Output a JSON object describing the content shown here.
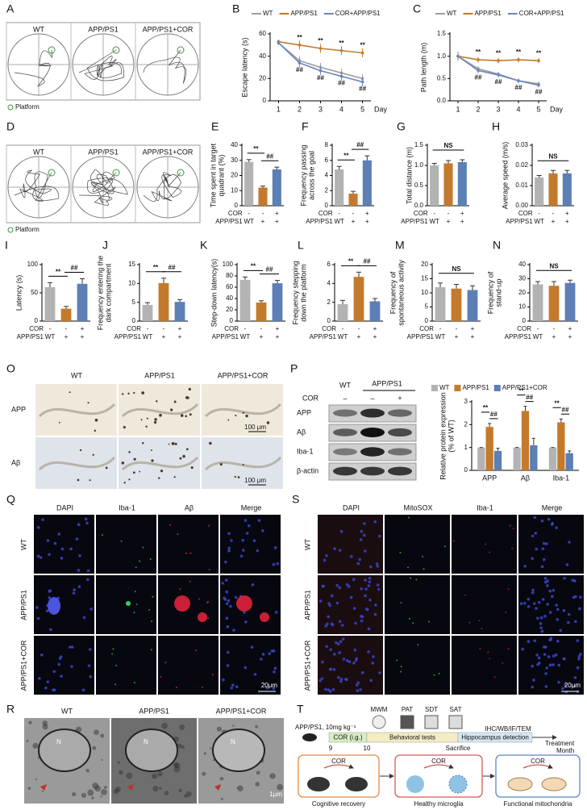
{
  "chart_data": [
    {
      "type": "line",
      "panel": "B",
      "ylabel": [
        "Escape latency (s)"
      ],
      "xlabel": "Day",
      "x": [
        1,
        2,
        3,
        4,
        5
      ],
      "xlim": [
        0.6,
        5.4
      ],
      "xticks": [
        1,
        2,
        3,
        4,
        5
      ],
      "ylim": [
        0,
        60
      ],
      "yticks": [
        0,
        20,
        40,
        60
      ],
      "series": [
        {
          "name": "WT",
          "color": "#9e9e9e",
          "values": [
            52,
            36,
            30,
            25,
            20
          ],
          "errors": [
            2,
            4,
            4,
            4,
            4
          ]
        },
        {
          "name": "APP/PS1",
          "color": "#c47a2c",
          "values": [
            53,
            50,
            47,
            45,
            43
          ],
          "errors": [
            2,
            4,
            4,
            4,
            4
          ]
        },
        {
          "name": "COR+APP/PS1",
          "color": "#6b86bf",
          "values": [
            52,
            34,
            27,
            22,
            17
          ],
          "errors": [
            2,
            4,
            4,
            4,
            4
          ]
        }
      ],
      "annotations": [
        {
          "x": 2,
          "text": "**"
        },
        {
          "x": 3,
          "text": "**"
        },
        {
          "x": 4,
          "text": "**"
        },
        {
          "x": 5,
          "text": "**"
        },
        {
          "x": 2,
          "text": "##"
        },
        {
          "x": 3,
          "text": "##"
        },
        {
          "x": 4,
          "text": "##"
        },
        {
          "x": 5,
          "text": "##"
        }
      ]
    },
    {
      "type": "line",
      "panel": "C",
      "ylabel": [
        "Path length (m)"
      ],
      "xlabel": "Day",
      "x": [
        1,
        2,
        3,
        4,
        5
      ],
      "xlim": [
        0.6,
        5.4
      ],
      "xticks": [
        1,
        2,
        3,
        4,
        5
      ],
      "ylim": [
        0,
        1.5
      ],
      "yticks": [
        {
          "value": 0,
          "label": "0.0"
        },
        0.5,
        {
          "value": 1,
          "label": "1.0"
        },
        1.5
      ],
      "series": [
        {
          "name": "WT",
          "color": "#9e9e9e",
          "values": [
            1.0,
            0.72,
            0.6,
            0.45,
            0.38
          ],
          "errors": [
            0.1,
            0.06,
            0.05,
            0.05,
            0.05
          ]
        },
        {
          "name": "APP/PS1",
          "color": "#c47a2c",
          "values": [
            1.0,
            0.92,
            0.9,
            0.92,
            0.9
          ],
          "errors": [
            0.1,
            0.06,
            0.06,
            0.06,
            0.06
          ]
        },
        {
          "name": "COR+APP/PS1",
          "color": "#6b86bf",
          "values": [
            1.0,
            0.68,
            0.58,
            0.45,
            0.35
          ],
          "errors": [
            0.1,
            0.06,
            0.05,
            0.05,
            0.05
          ]
        }
      ],
      "annotations": [
        {
          "x": 2,
          "text": "**"
        },
        {
          "x": 3,
          "text": "**"
        },
        {
          "x": 4,
          "text": "**"
        },
        {
          "x": 5,
          "text": "**"
        },
        {
          "x": 2,
          "text": "##"
        },
        {
          "x": 3,
          "text": "##"
        },
        {
          "x": 4,
          "text": "##"
        },
        {
          "x": 5,
          "text": "##"
        }
      ]
    },
    {
      "type": "bar",
      "panel": "E",
      "ylabel": [
        "Time spent in target",
        "quadrant (%)"
      ],
      "ylim": [
        0,
        40
      ],
      "yticks": [
        0,
        10,
        20,
        30,
        40
      ],
      "values": [
        29,
        12,
        24
      ],
      "errors": [
        1.5,
        1,
        1.5
      ],
      "colors": [
        "#b3b3b3",
        "#c47a2c",
        "#5c7fb5"
      ],
      "rows": [
        {
          "label": "COR",
          "values": [
            "-",
            "-",
            "+"
          ]
        },
        {
          "label": "APP/PS1",
          "values": [
            "WT",
            "+",
            "+"
          ]
        }
      ],
      "brackets": [
        {
          "from": 0,
          "to": 1,
          "text": "**"
        },
        {
          "from": 1,
          "to": 2,
          "text": "##"
        }
      ]
    },
    {
      "type": "bar",
      "panel": "F",
      "ylabel": [
        "Frequency passing",
        "across the goal"
      ],
      "ylim": [
        0,
        8
      ],
      "yticks": [
        0,
        2,
        4,
        6,
        8
      ],
      "values": [
        4.8,
        1.6,
        6.0
      ],
      "errors": [
        0.4,
        0.3,
        0.6
      ],
      "colors": [
        "#b3b3b3",
        "#c47a2c",
        "#5c7fb5"
      ],
      "rows": [
        {
          "label": "COR",
          "values": [
            "-",
            "-",
            "+"
          ]
        },
        {
          "label": "APP/PS1",
          "values": [
            "WT",
            "+",
            "+"
          ]
        }
      ],
      "brackets": [
        {
          "from": 0,
          "to": 1,
          "text": "**"
        },
        {
          "from": 1,
          "to": 2,
          "text": "##"
        }
      ]
    },
    {
      "type": "bar",
      "panel": "G",
      "ylabel": [
        "Total distance (m)"
      ],
      "ylim": [
        0,
        1.5
      ],
      "yticks": [
        {
          "value": 0,
          "label": "0.0"
        },
        0.5,
        {
          "value": 1,
          "label": "1.0"
        },
        1.5
      ],
      "values": [
        1.0,
        1.05,
        1.08
      ],
      "errors": [
        0.05,
        0.07,
        0.06
      ],
      "colors": [
        "#b3b3b3",
        "#c47a2c",
        "#5c7fb5"
      ],
      "rows": [
        {
          "label": "COR",
          "values": [
            "-",
            "-",
            "+"
          ]
        },
        {
          "label": "APP/PS1",
          "values": [
            "WT",
            "+",
            "+"
          ]
        }
      ],
      "brackets": [
        {
          "from": 0,
          "to": 2,
          "text": "NS"
        }
      ]
    },
    {
      "type": "bar",
      "panel": "H",
      "ylabel": [
        "Average speed (m/s)"
      ],
      "ylim": [
        0,
        0.03
      ],
      "yticks": [
        {
          "value": 0,
          "label": "0.00"
        },
        0.01,
        0.02,
        0.03
      ],
      "values": [
        0.014,
        0.016,
        0.016
      ],
      "errors": [
        0.001,
        0.0015,
        0.0015
      ],
      "colors": [
        "#b3b3b3",
        "#c47a2c",
        "#5c7fb5"
      ],
      "rows": [
        {
          "label": "COR",
          "values": [
            "-",
            "-",
            "+"
          ]
        },
        {
          "label": "APP/PS1",
          "values": [
            "WT",
            "+",
            "+"
          ]
        }
      ],
      "brackets": [
        {
          "from": 0,
          "to": 2,
          "text": "NS"
        }
      ]
    },
    {
      "type": "bar",
      "panel": "I",
      "ylabel": [
        "Latency (s)"
      ],
      "ylim": [
        0,
        100
      ],
      "yticks": [
        0,
        50,
        100
      ],
      "values": [
        60,
        22,
        66
      ],
      "errors": [
        8,
        4,
        9
      ],
      "colors": [
        "#b3b3b3",
        "#c47a2c",
        "#5c7fb5"
      ],
      "rows": [
        {
          "label": "COR",
          "values": [
            "-",
            "-",
            "+"
          ]
        },
        {
          "label": "APP/PS1",
          "values": [
            "WT",
            "+",
            "+"
          ]
        }
      ],
      "brackets": [
        {
          "from": 0,
          "to": 1,
          "text": "**"
        },
        {
          "from": 1,
          "to": 2,
          "text": "##"
        }
      ]
    },
    {
      "type": "bar",
      "panel": "J",
      "ylabel": [
        "Frequency entering the",
        "dark compartment"
      ],
      "ylim": [
        0,
        15
      ],
      "yticks": [
        0,
        5,
        10,
        15
      ],
      "values": [
        4.3,
        10.1,
        5.1
      ],
      "errors": [
        0.6,
        1.3,
        0.6
      ],
      "colors": [
        "#b3b3b3",
        "#c47a2c",
        "#5c7fb5"
      ],
      "rows": [
        {
          "label": "COR",
          "values": [
            "-",
            "-",
            "+"
          ]
        },
        {
          "label": "APP/PS1",
          "values": [
            "WT",
            "+",
            "+"
          ]
        }
      ],
      "brackets": [
        {
          "from": 0,
          "to": 1,
          "text": "**"
        },
        {
          "from": 1,
          "to": 2,
          "text": "##"
        }
      ]
    },
    {
      "type": "bar",
      "panel": "K",
      "ylabel": [
        "Step-down latency(s)"
      ],
      "ylim": [
        0,
        100
      ],
      "yticks": [
        0,
        20,
        40,
        60,
        80,
        100
      ],
      "values": [
        73,
        33,
        67
      ],
      "errors": [
        5,
        3,
        5
      ],
      "colors": [
        "#b3b3b3",
        "#c47a2c",
        "#5c7fb5"
      ],
      "rows": [
        {
          "label": "COR",
          "values": [
            "-",
            "-",
            "+"
          ]
        },
        {
          "label": "APP/PS1",
          "values": [
            "WT",
            "+",
            "+"
          ]
        }
      ],
      "brackets": [
        {
          "from": 0,
          "to": 1,
          "text": "**"
        },
        {
          "from": 1,
          "to": 2,
          "text": "##"
        }
      ]
    },
    {
      "type": "bar",
      "panel": "L",
      "ylabel": [
        "Frequency stepping",
        "down the platform"
      ],
      "ylim": [
        0,
        6
      ],
      "yticks": [
        0,
        2,
        4,
        6
      ],
      "values": [
        1.8,
        4.7,
        2.1
      ],
      "errors": [
        0.4,
        0.5,
        0.3
      ],
      "colors": [
        "#b3b3b3",
        "#c47a2c",
        "#5c7fb5"
      ],
      "rows": [
        {
          "label": "COR",
          "values": [
            "-",
            "-",
            "+"
          ]
        },
        {
          "label": "APP/PS1",
          "values": [
            "WT",
            "+",
            "+"
          ]
        }
      ],
      "brackets": [
        {
          "from": 0,
          "to": 1,
          "text": "**"
        },
        {
          "from": 1,
          "to": 2,
          "text": "##"
        }
      ]
    },
    {
      "type": "bar",
      "panel": "M",
      "ylabel": [
        "Frequency of",
        "spontaneous activity"
      ],
      "ylim": [
        0,
        20
      ],
      "yticks": [
        0,
        5,
        10,
        15,
        20
      ],
      "values": [
        12,
        11.5,
        11
      ],
      "errors": [
        1.5,
        1.5,
        1.5
      ],
      "colors": [
        "#b3b3b3",
        "#c47a2c",
        "#5c7fb5"
      ],
      "rows": [
        {
          "label": "COR",
          "values": [
            "-",
            "-",
            "+"
          ]
        },
        {
          "label": "APP/PS1",
          "values": [
            "WT",
            "+",
            "+"
          ]
        }
      ],
      "brackets": [
        {
          "from": 0,
          "to": 2,
          "text": "NS"
        }
      ]
    },
    {
      "type": "bar",
      "panel": "N",
      "ylabel": [
        "Frequency of",
        "stand-up"
      ],
      "ylim": [
        0,
        40
      ],
      "yticks": [
        0,
        10,
        20,
        30,
        40
      ],
      "values": [
        26,
        25,
        27
      ],
      "errors": [
        2,
        3,
        2
      ],
      "colors": [
        "#b3b3b3",
        "#c47a2c",
        "#5c7fb5"
      ],
      "rows": [
        {
          "label": "COR",
          "values": [
            "-",
            "-",
            "+"
          ]
        },
        {
          "label": "APP/PS1",
          "values": [
            "WT",
            "+",
            "+"
          ]
        }
      ],
      "brackets": [
        {
          "from": 0,
          "to": 2,
          "text": "NS"
        }
      ]
    },
    {
      "type": "grouped_bar",
      "ylabel": [
        "Relative protein expression",
        "(% of WT)"
      ],
      "ylim": [
        0,
        3
      ],
      "yticks": [
        0,
        1,
        2,
        3
      ],
      "categories": [
        "APP",
        "Aβ",
        "Iba-1"
      ],
      "series": [
        {
          "name": "WT",
          "color": "#b3b3b3",
          "values": [
            1,
            1,
            1
          ],
          "errors": [
            0,
            0,
            0
          ]
        },
        {
          "name": "APP/PS1",
          "color": "#c47a2c",
          "values": [
            1.9,
            2.6,
            2.1
          ],
          "errors": [
            0.15,
            0.2,
            0.15
          ]
        },
        {
          "name": "APP/PS1+COR",
          "color": "#5c7fb5",
          "values": [
            0.85,
            1.1,
            0.75
          ],
          "errors": [
            0.12,
            0.3,
            0.1
          ]
        }
      ],
      "annotations": [
        {
          "category": 0,
          "from": 0,
          "to": 1,
          "text": "**"
        },
        {
          "category": 0,
          "from": 1,
          "to": 2,
          "text": "##"
        },
        {
          "category": 1,
          "from": 0,
          "to": 1,
          "text": "**"
        },
        {
          "category": 1,
          "from": 1,
          "to": 2,
          "text": "##"
        },
        {
          "category": 2,
          "from": 0,
          "to": 1,
          "text": "**"
        },
        {
          "category": 2,
          "from": 1,
          "to": 2,
          "text": "##"
        }
      ]
    }
  ],
  "maze": [
    {
      "letter": "A",
      "columns": [
        "WT",
        "APP/PS1",
        "APP/PS1+COR"
      ],
      "legend": "Platform"
    },
    {
      "letter": "D",
      "columns": [
        "WT",
        "APP/PS1",
        "APP/PS1+COR"
      ],
      "legend": "Platform"
    }
  ],
  "ihc": {
    "letter": "O",
    "columns": [
      "WT",
      "APP/PS1",
      "APP/PS1+COR"
    ],
    "rows": [
      "APP",
      "Aβ"
    ],
    "scale_bars": [
      "100 μm",
      "100 μm"
    ]
  },
  "blot": {
    "letter": "P",
    "groups": [
      "WT",
      "APP/PS1"
    ],
    "treatment_label": "COR",
    "treatment": [
      "–",
      "–",
      "+"
    ],
    "proteins": [
      "APP",
      "Aβ",
      "Iba-1",
      "β-actin"
    ]
  },
  "if_panels": [
    {
      "letter": "Q",
      "columns": [
        "DAPI",
        "Iba-1",
        "Aβ",
        "Merge"
      ],
      "rows": [
        "WT",
        "APP/PS1",
        "APP/PS1+COR"
      ],
      "scale_bar": "20μm"
    },
    {
      "letter": "S",
      "columns": [
        "DAPI",
        "MitoSOX",
        "Iba-1",
        "Merge"
      ],
      "rows": [
        "WT",
        "APP/PS1",
        "APP/PS1+COR"
      ],
      "scale_bar": "20μm"
    }
  ],
  "tem": {
    "letter": "R",
    "columns": [
      "WT",
      "APP/PS1",
      "APP/PS1+COR"
    ],
    "nucleus_labels": [
      "N",
      "N",
      "N"
    ],
    "scale_bar": "1μm"
  },
  "scheme": {
    "letter": "T",
    "model": "APP/PS1, 10mg kg⁻¹",
    "tests": [
      "MWM",
      "PAT",
      "SDT",
      "SAT"
    ],
    "assays": "IHC/WB/IF/TEM",
    "phases": [
      "COR (i.g.)",
      "Behavioral tests",
      "Hippocampus detection"
    ],
    "months": [
      "9",
      "10"
    ],
    "sacrifice": "Sacrifice",
    "axis": [
      "Treatment",
      "Month"
    ],
    "treatment": [
      "COR",
      "COR",
      "COR"
    ],
    "outcomes": [
      "Cognitive recovery",
      "Healthy microglia",
      "Functional mitochondria"
    ]
  }
}
